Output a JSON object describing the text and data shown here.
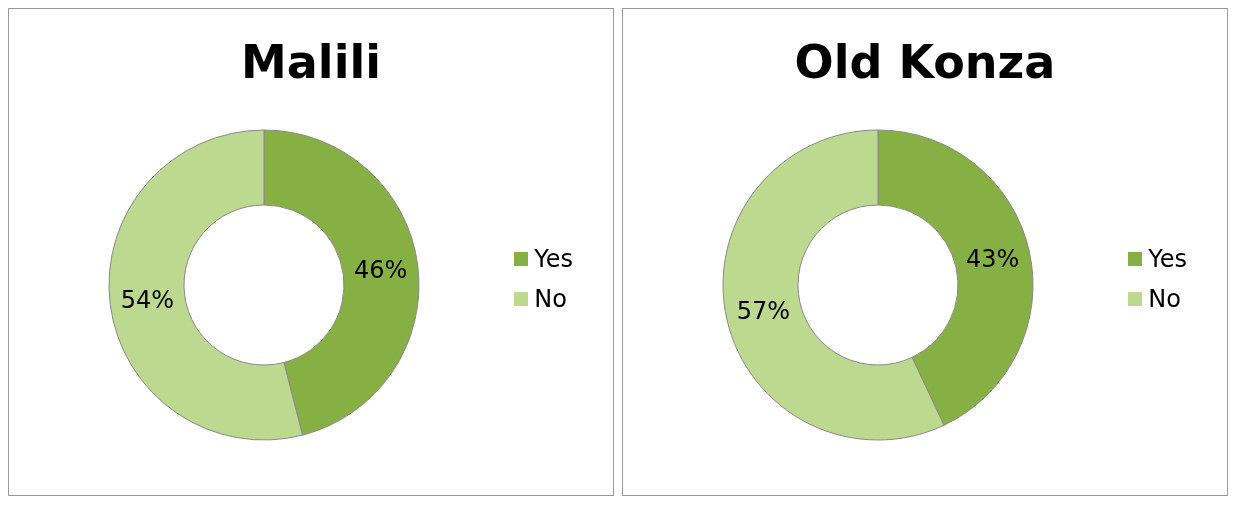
{
  "chart_data": [
    {
      "type": "donut",
      "title": "Malili",
      "categories": [
        "Yes",
        "No"
      ],
      "values": [
        46,
        54
      ],
      "value_labels": [
        "46%",
        "54%"
      ],
      "colors": [
        "#86b043",
        "#bcd98f"
      ],
      "legend": "right"
    },
    {
      "type": "donut",
      "title": "Old Konza",
      "categories": [
        "Yes",
        "No"
      ],
      "values": [
        43,
        57
      ],
      "value_labels": [
        "43%",
        "57%"
      ],
      "colors": [
        "#86b043",
        "#bcd98f"
      ],
      "legend": "right"
    }
  ]
}
